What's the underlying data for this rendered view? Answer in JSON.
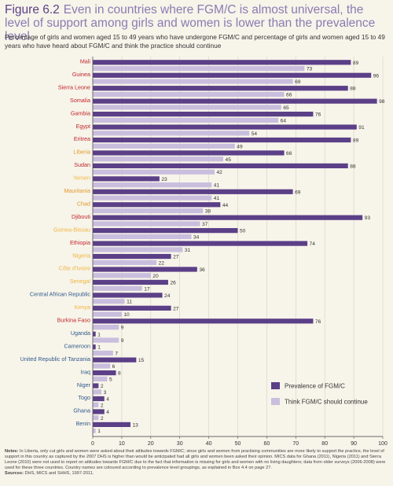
{
  "figure": {
    "number": "Figure 6.2",
    "title": "Even in countries where FGM/C is almost universal, the level of support among girls and women is lower than the prevalence level",
    "subtitle": "Percentage of girls and women aged 15 to 49 years who have undergone FGM/C and percentage of girls and women aged 15 to 49 years who have heard about FGM/C and think the practice should continue"
  },
  "colors": {
    "prevalence": "#5b3f87",
    "support": "#c9bedd",
    "group_high": "#c0272d",
    "group_moderate_high": "#e39a2c",
    "group_moderate": "#f0b63f",
    "group_low": "#2f5b8a",
    "axis": "#555555",
    "grid": "#d6d0c2"
  },
  "chart_data": {
    "type": "bar",
    "orientation": "horizontal",
    "categories": [
      "Mali",
      "Guinea",
      "Sierra Leone",
      "Somalia",
      "Gambia",
      "Egypt",
      "Eritrea",
      "Liberia",
      "Sudan",
      "Yemen",
      "Mauritania",
      "Chad",
      "Djibouti",
      "Guinea-Bissau",
      "Ethiopia",
      "Nigeria",
      "Côte d'Ivoire",
      "Senegal",
      "Central African Republic",
      "Kenya",
      "Burkina Faso",
      "Uganda",
      "Cameroon",
      "United Republic of Tanzania",
      "Iraq",
      "Niger",
      "Togo",
      "Ghana",
      "Benin"
    ],
    "category_groups": [
      "high",
      "high",
      "high",
      "high",
      "high",
      "high",
      "high",
      "moderate_high",
      "high",
      "moderate",
      "moderate_high",
      "moderate_high",
      "high",
      "moderate",
      "high",
      "moderate",
      "moderate",
      "moderate",
      "low",
      "moderate",
      "high",
      "low",
      "low",
      "low",
      "low",
      "low",
      "low",
      "low",
      "low"
    ],
    "series": [
      {
        "name": "Prevalence of FGM/C",
        "values": [
          89,
          96,
          88,
          98,
          76,
          91,
          89,
          66,
          88,
          23,
          69,
          44,
          93,
          50,
          74,
          27,
          36,
          26,
          24,
          27,
          76,
          1,
          1,
          15,
          8,
          2,
          4,
          4,
          13
        ]
      },
      {
        "name": "Think FGM/C should continue",
        "values": [
          73,
          69,
          66,
          65,
          64,
          54,
          49,
          45,
          42,
          41,
          41,
          38,
          37,
          34,
          31,
          22,
          20,
          17,
          11,
          10,
          9,
          9,
          7,
          6,
          5,
          3,
          2,
          2,
          1
        ]
      }
    ],
    "x_ticks": [
      "0",
      "10",
      "20",
      "30",
      "40",
      "50",
      "60",
      "70",
      "80",
      "90",
      "100"
    ],
    "xlim": [
      0,
      100
    ],
    "legend_position": "bottom-right",
    "grid": true
  },
  "notes": {
    "label": "Notes:",
    "text": "In Liberia, only cut girls and women were asked about their attitudes towards FGM/C; since girls and women from practising communities are more likely to support the practice, the level of support in this country as captured by the 2007 DHS is higher than would be anticipated had all girls and women been asked their opinion. MICS data for Ghana (2011), Nigeria (2011) and Sierra Leone (2010) were not used to report on attitudes towards FGM/C due to the fact that information is missing for girls and women with no living daughters; data from older surveys (2006-2008) were used for these three countries. Country names are coloured according to prevalence level groupings, as explained in Box 4.4 on page 27.",
    "sources_label": "Sources:",
    "sources_text": "DHS, MICS and SHHS, 1997-2011."
  }
}
